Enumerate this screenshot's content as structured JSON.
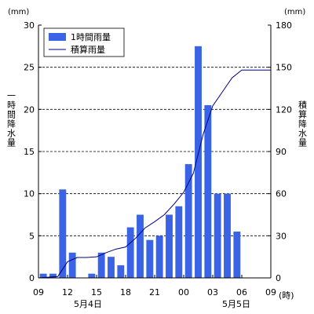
{
  "chart_data": {
    "type": "bar",
    "left_unit": "(mm)",
    "right_unit": "(mm)",
    "left_axis_label": "一時間降水量",
    "right_axis_label": "積算降水量",
    "left_ylim": [
      0,
      30
    ],
    "left_yticks": [
      "0",
      "5",
      "10",
      "15",
      "20",
      "25",
      "30"
    ],
    "right_ylim": [
      0,
      180
    ],
    "right_yticks": [
      "0",
      "30",
      "60",
      "90",
      "120",
      "150",
      "180"
    ],
    "x_ticks": [
      "09",
      "12",
      "15",
      "18",
      "21",
      "00",
      "03",
      "06",
      "09"
    ],
    "x_unit": "(時)",
    "date_labels": [
      "5月4日",
      "5月5日"
    ],
    "grid": "horizontal dashed",
    "legend": {
      "placement": "top-left",
      "bar_label": "1時間雨量",
      "line_label": "積算雨量"
    },
    "colors": {
      "bar": "#3a63e6",
      "line": "#000080"
    },
    "hours_from_start": [
      1,
      2,
      3,
      4,
      5,
      6,
      7,
      8,
      9,
      10,
      11,
      12,
      13,
      14,
      15,
      16,
      17,
      18,
      19,
      20,
      21,
      22,
      23,
      24,
      25
    ],
    "series": [
      {
        "name": "1時間雨量",
        "kind": "bar",
        "axis": "left",
        "values": [
          0.5,
          0.5,
          10.5,
          3.0,
          0,
          0.5,
          3.0,
          2.5,
          1.5,
          6.0,
          7.5,
          4.5,
          5.0,
          7.5,
          8.5,
          13.5,
          27.5,
          20.5,
          10.0,
          10.0,
          5.5,
          0,
          0,
          0,
          0
        ]
      },
      {
        "name": "積算雨量",
        "kind": "line",
        "axis": "right",
        "values": [
          0.5,
          1,
          11.5,
          14.5,
          14.5,
          15,
          18,
          20.5,
          22,
          28,
          35.5,
          40,
          45,
          52.5,
          61,
          74.5,
          102,
          122.5,
          132.5,
          142.5,
          148,
          148,
          148,
          148,
          148
        ]
      }
    ]
  }
}
